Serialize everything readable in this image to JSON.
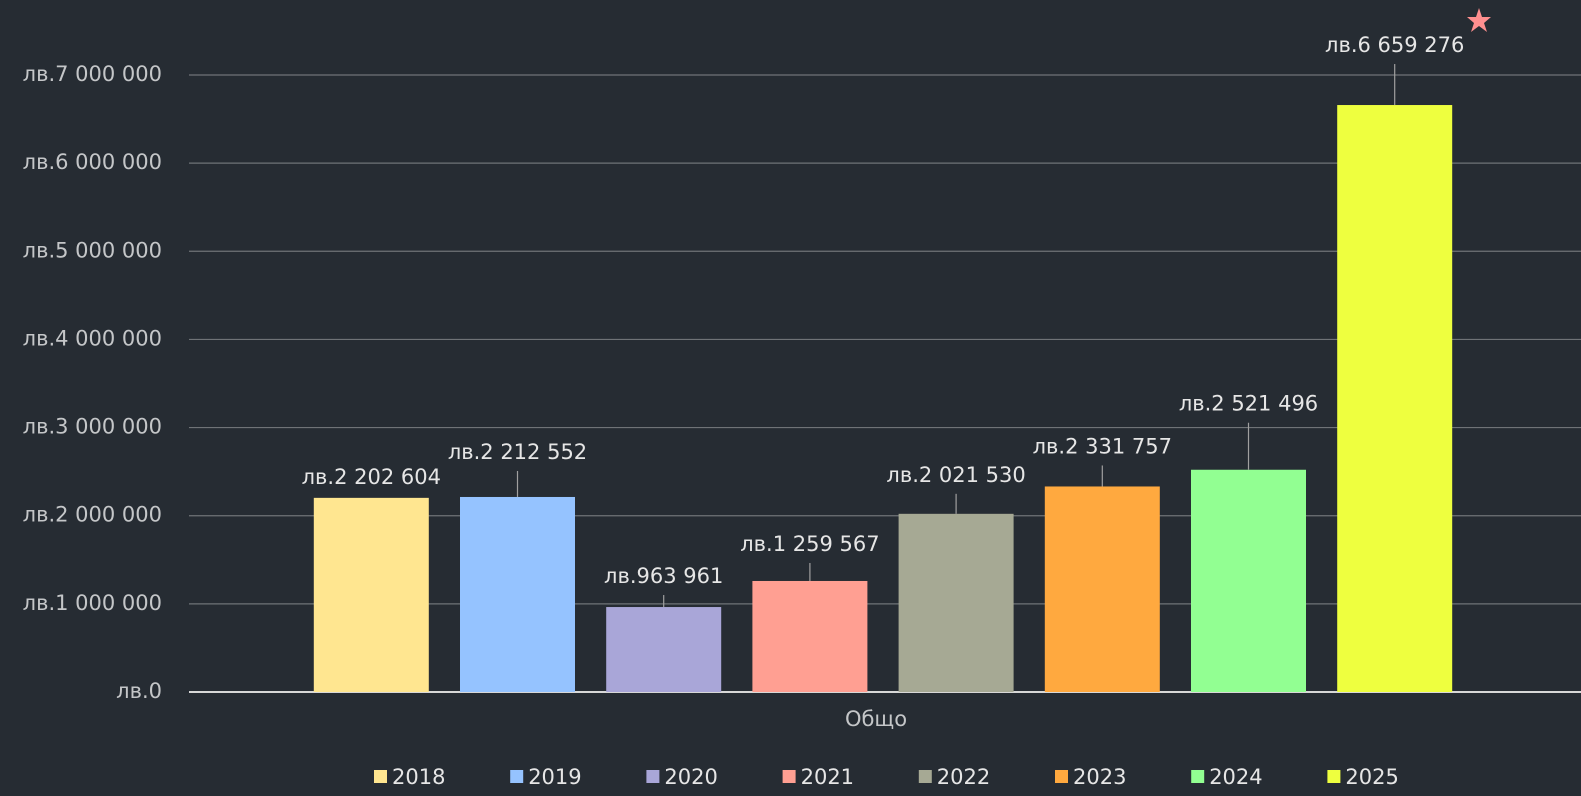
{
  "chart_data": {
    "type": "bar",
    "categories": [
      "Общо"
    ],
    "series": [
      {
        "name": "2018",
        "color": "#ffe690",
        "values": [
          2202604
        ],
        "value_labels": [
          "лв.2 202 604"
        ]
      },
      {
        "name": "2019",
        "color": "#95c3ff",
        "values": [
          2212552
        ],
        "value_labels": [
          "лв.2 212 552"
        ]
      },
      {
        "name": "2020",
        "color": "#a9a6d8",
        "values": [
          963961
        ],
        "value_labels": [
          "лв.963 961"
        ]
      },
      {
        "name": "2021",
        "color": "#ff9f92",
        "values": [
          1259567
        ],
        "value_labels": [
          "лв.1 259 567"
        ]
      },
      {
        "name": "2022",
        "color": "#a6a994",
        "values": [
          2021530
        ],
        "value_labels": [
          "лв.2 021 530"
        ]
      },
      {
        "name": "2023",
        "color": "#ffa93f",
        "values": [
          2331757
        ],
        "value_labels": [
          "лв.2 331 757"
        ]
      },
      {
        "name": "2024",
        "color": "#92ff92",
        "values": [
          2521496
        ],
        "value_labels": [
          "лв.2 521 496"
        ]
      },
      {
        "name": "2025",
        "color": "#eeff3f",
        "values": [
          6659276
        ],
        "value_labels": [
          "лв.6 659 276"
        ]
      }
    ],
    "ylim": [
      0,
      7000000
    ],
    "yticks": [
      {
        "value": 0,
        "label": "лв.0"
      },
      {
        "value": 1000000,
        "label": "лв.1 000 000"
      },
      {
        "value": 2000000,
        "label": "лв.2 000 000"
      },
      {
        "value": 3000000,
        "label": "лв.3 000 000"
      },
      {
        "value": 4000000,
        "label": "лв.4 000 000"
      },
      {
        "value": 5000000,
        "label": "лв.5 000 000"
      },
      {
        "value": 6000000,
        "label": "лв.6 000 000"
      },
      {
        "value": 7000000,
        "label": "лв.7 000 000"
      }
    ],
    "grid": true,
    "legend": "bottom"
  }
}
